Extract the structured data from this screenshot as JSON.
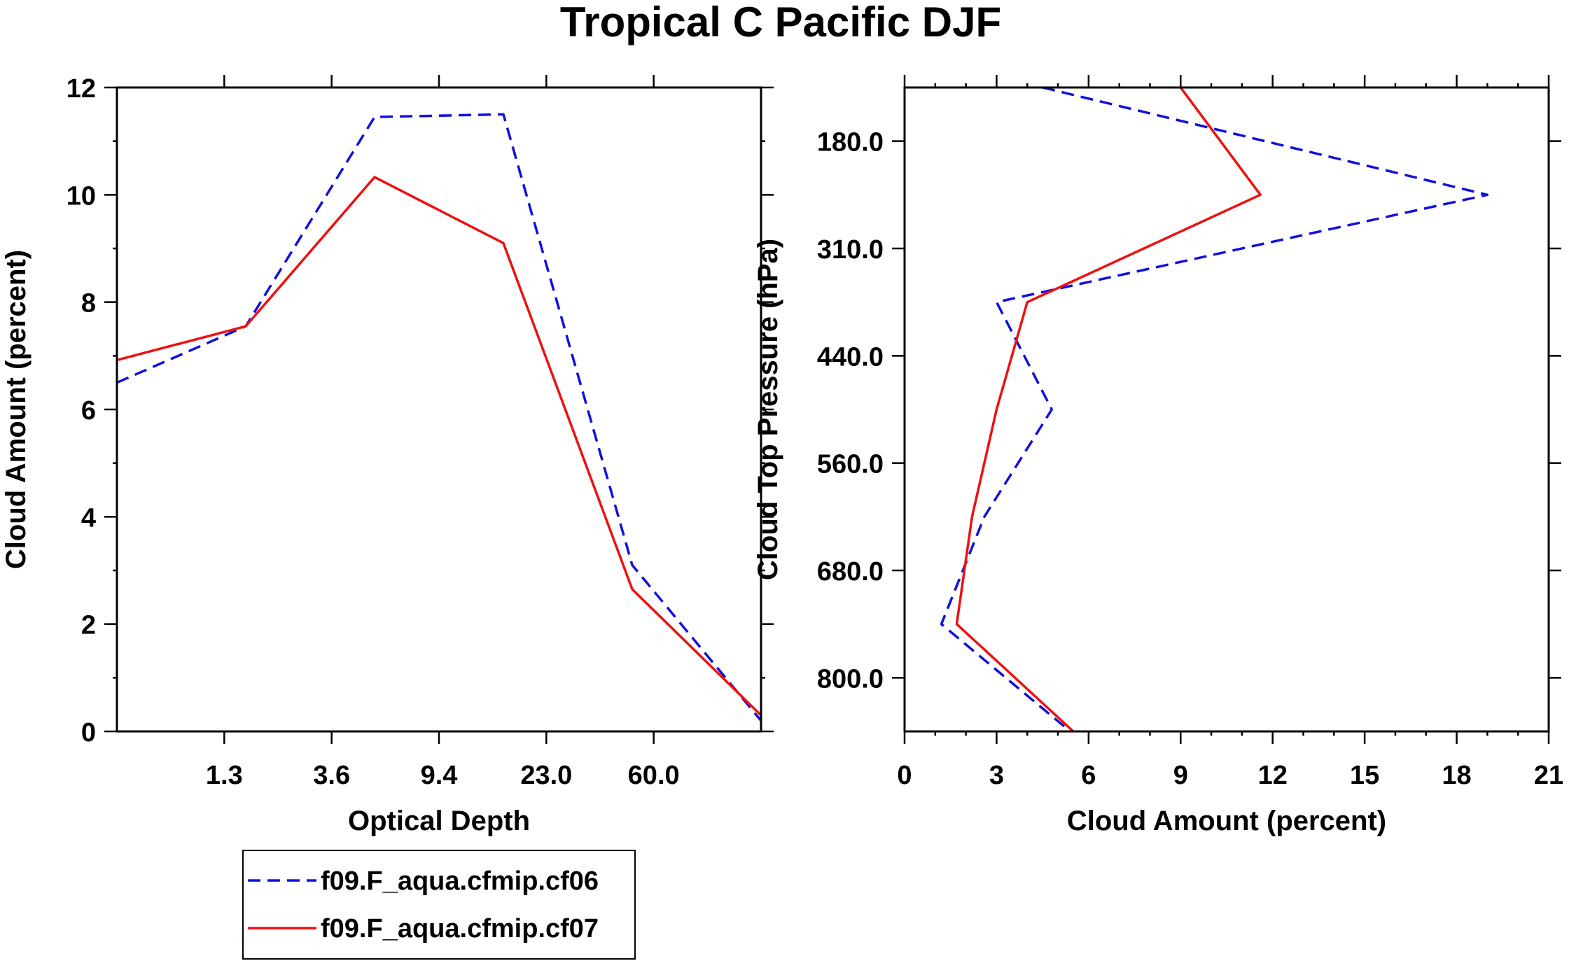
{
  "title": "Tropical C Pacific DJF",
  "colors": {
    "series_a": "#1010e0",
    "series_b": "#ee1010"
  },
  "chart_data": [
    {
      "type": "line",
      "xlabel": "Optical Depth",
      "ylabel": "Cloud Amount (percent)",
      "x_scale": "categorical",
      "x_tick_labels": [
        "1.3",
        "3.6",
        "9.4",
        "23.0",
        "60.0"
      ],
      "x_bins": 6,
      "ylim": [
        0,
        12
      ],
      "y_ticks": [
        0,
        2,
        4,
        6,
        8,
        10,
        12
      ],
      "grid": false,
      "series": [
        {
          "name": "f09.F_aqua.cfmip.cf06",
          "color": "#1010e0",
          "dash": true,
          "x": [
            0,
            1,
            2,
            3,
            4,
            5
          ],
          "values": [
            6.5,
            7.55,
            11.45,
            11.5,
            3.1,
            0.2
          ]
        },
        {
          "name": "f09.F_aqua.cfmip.cf07",
          "color": "#ee1010",
          "dash": false,
          "x": [
            0,
            1,
            2,
            3,
            4,
            5
          ],
          "values": [
            6.92,
            7.55,
            10.33,
            9.1,
            2.65,
            0.3
          ]
        }
      ]
    },
    {
      "type": "line",
      "xlabel": "Cloud Amount (percent)",
      "ylabel": "Cloud Top Pressure (hPa)",
      "xlim": [
        0,
        21
      ],
      "x_ticks": [
        0,
        3,
        6,
        9,
        12,
        15,
        18,
        21
      ],
      "y_scale": "categorical",
      "y_tick_labels": [
        "180.0",
        "310.0",
        "440.0",
        "560.0",
        "680.0",
        "800.0"
      ],
      "y_bins": 6,
      "grid": false,
      "series": [
        {
          "name": "f09.F_aqua.cfmip.cf06",
          "color": "#1010e0",
          "dash": true,
          "x": [
            4.5,
            19.0,
            3.0,
            4.8,
            2.6,
            1.2,
            5.4
          ],
          "y": [
            0,
            1,
            2,
            3,
            4,
            5,
            6
          ]
        },
        {
          "name": "f09.F_aqua.cfmip.cf07",
          "color": "#ee1010",
          "dash": false,
          "x": [
            9.0,
            11.6,
            4.0,
            3.0,
            2.2,
            1.7,
            5.5
          ],
          "y": [
            0,
            1,
            2,
            3,
            4,
            5,
            6
          ]
        }
      ]
    }
  ],
  "legend": {
    "placement": "below-left",
    "entries": [
      "f09.F_aqua.cfmip.cf06",
      "f09.F_aqua.cfmip.cf07"
    ]
  }
}
